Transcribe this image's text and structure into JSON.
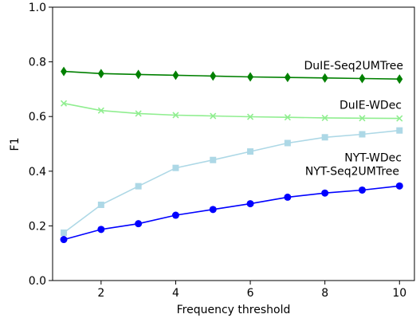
{
  "chart_data": {
    "type": "line",
    "title": "",
    "xlabel": "Frequency threshold",
    "ylabel": "F1",
    "x": [
      1,
      2,
      3,
      4,
      5,
      6,
      7,
      8,
      9,
      10
    ],
    "xlim": [
      0.7,
      10.4
    ],
    "ylim": [
      0.0,
      1.0
    ],
    "xticks": [
      "2",
      "4",
      "6",
      "8",
      "10"
    ],
    "yticks": [
      "0.0",
      "0.2",
      "0.4",
      "0.6",
      "0.8",
      "1.0"
    ],
    "grid": false,
    "legend": "none",
    "series": [
      {
        "name": "DuIE-Seq2UMTree",
        "marker": "diamond",
        "color": "#008000",
        "values": [
          0.765,
          0.757,
          0.754,
          0.751,
          0.748,
          0.745,
          0.743,
          0.741,
          0.739,
          0.737
        ]
      },
      {
        "name": "DuIE-WDec",
        "marker": "x",
        "color": "#90ee90",
        "values": [
          0.648,
          0.622,
          0.611,
          0.605,
          0.602,
          0.599,
          0.597,
          0.595,
          0.594,
          0.593
        ]
      },
      {
        "name": "NYT-WDec",
        "marker": "square",
        "color": "#add8e6",
        "values": [
          0.175,
          0.277,
          0.345,
          0.412,
          0.441,
          0.472,
          0.503,
          0.524,
          0.535,
          0.549
        ]
      },
      {
        "name": "NYT-Seq2UMTree",
        "marker": "circle",
        "color": "#0000ff",
        "values": [
          0.15,
          0.187,
          0.208,
          0.239,
          0.26,
          0.281,
          0.305,
          0.32,
          0.331,
          0.346
        ]
      }
    ]
  }
}
